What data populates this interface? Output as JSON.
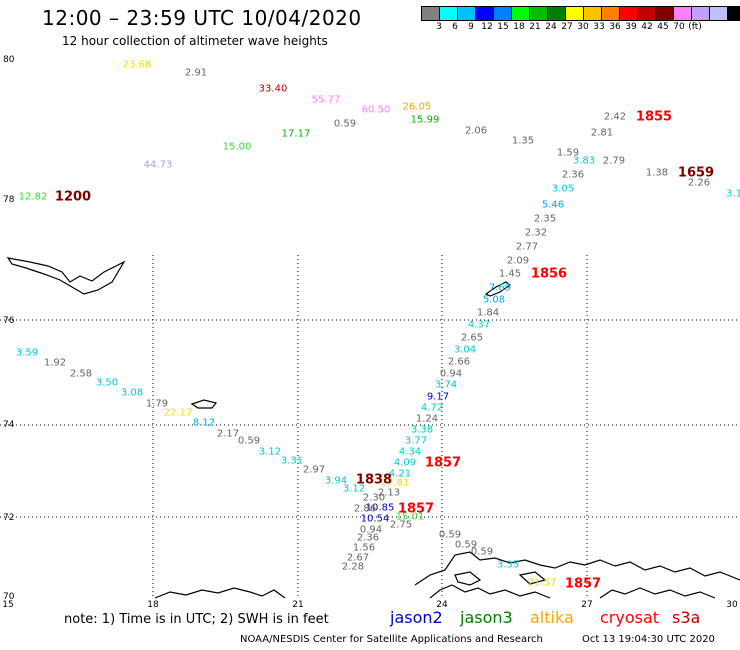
{
  "header": {
    "title": "12:00 – 23:59 UTC 10/04/2020",
    "subtitle": "12 hour collection of altimeter wave heights"
  },
  "colorbar": {
    "colors": [
      "#808080",
      "#00ffff",
      "#00bfff",
      "#0000ff",
      "#0080ff",
      "#00ff00",
      "#00c000",
      "#008000",
      "#ffff00",
      "#ffc000",
      "#ff8000",
      "#ff0000",
      "#c00000",
      "#800000",
      "#ff80ff",
      "#c0a0ff",
      "#c0c0ff",
      "#000000"
    ],
    "labels": [
      "3",
      "6",
      "9",
      "12",
      "15",
      "18",
      "21",
      "24",
      "27",
      "30",
      "33",
      "36",
      "39",
      "42",
      "45",
      "70",
      "(ft)"
    ]
  },
  "axes": {
    "lat_labels": [
      "80",
      "78",
      "76",
      "74",
      "72",
      "70"
    ],
    "lon_labels": [
      "15",
      "18",
      "21",
      "24",
      "27",
      "30"
    ]
  },
  "observations": [
    {
      "v": "23.68",
      "c": "#e6e600"
    },
    {
      "v": "2.91",
      "c": "#666666"
    },
    {
      "v": "33.40",
      "c": "#c00000"
    },
    {
      "v": "55.77",
      "c": "#ff80ff"
    },
    {
      "v": "60.50",
      "c": "#ff80ff"
    },
    {
      "v": "26.05",
      "c": "#e6a800"
    },
    {
      "v": "15.99",
      "c": "#00b000"
    },
    {
      "v": "17.17",
      "c": "#00b000"
    },
    {
      "v": "0.59",
      "c": "#666666"
    },
    {
      "v": "2.06",
      "c": "#666666"
    },
    {
      "v": "15.00",
      "c": "#33dd33"
    },
    {
      "v": "44.73",
      "c": "#a0a0ff"
    },
    {
      "v": "12.82",
      "c": "#33dd33"
    },
    {
      "v": "2.42",
      "c": "#666666"
    },
    {
      "v": "2.81",
      "c": "#666666"
    },
    {
      "v": "1.35",
      "c": "#666666"
    },
    {
      "v": "1.59",
      "c": "#666666"
    },
    {
      "v": "3.83",
      "c": "#00cccc"
    },
    {
      "v": "2.79",
      "c": "#666666"
    },
    {
      "v": "2.36",
      "c": "#666666"
    },
    {
      "v": "1.38",
      "c": "#666666"
    },
    {
      "v": "2.26",
      "c": "#666666"
    },
    {
      "v": "3.05",
      "c": "#00cccc"
    },
    {
      "v": "5.46",
      "c": "#00aaee"
    },
    {
      "v": "2.35",
      "c": "#666666"
    },
    {
      "v": "2.32",
      "c": "#666666"
    },
    {
      "v": "2.77",
      "c": "#666666"
    },
    {
      "v": "2.09",
      "c": "#666666"
    },
    {
      "v": "1.45",
      "c": "#666666"
    },
    {
      "v": "7.69",
      "c": "#00aaee"
    },
    {
      "v": "5.08",
      "c": "#00aaee"
    },
    {
      "v": "1.84",
      "c": "#666666"
    },
    {
      "v": "4.37",
      "c": "#00cccc"
    },
    {
      "v": "2.65",
      "c": "#666666"
    },
    {
      "v": "3.04",
      "c": "#00cccc"
    },
    {
      "v": "2.66",
      "c": "#666666"
    },
    {
      "v": "0.94",
      "c": "#666666"
    },
    {
      "v": "3.74",
      "c": "#00cccc"
    },
    {
      "v": "9.17",
      "c": "#0000cc"
    },
    {
      "v": "4.72",
      "c": "#00cccc"
    },
    {
      "v": "1.24",
      "c": "#666666"
    },
    {
      "v": "3.38",
      "c": "#00cccc"
    },
    {
      "v": "3.77",
      "c": "#00cccc"
    },
    {
      "v": "4.34",
      "c": "#00cccc"
    },
    {
      "v": "4.09",
      "c": "#00cccc"
    },
    {
      "v": "4.21",
      "c": "#00cccc"
    },
    {
      "v": "3.59",
      "c": "#00cccc"
    },
    {
      "v": "1.92",
      "c": "#666666"
    },
    {
      "v": "2.58",
      "c": "#666666"
    },
    {
      "v": "3.50",
      "c": "#00cccc"
    },
    {
      "v": "3.08",
      "c": "#00cccc"
    },
    {
      "v": "1.79",
      "c": "#666666"
    },
    {
      "v": "22.17",
      "c": "#e6e600"
    },
    {
      "v": "8.12",
      "c": "#00aaee"
    },
    {
      "v": "2.17",
      "c": "#666666"
    },
    {
      "v": "0.59",
      "c": "#666666"
    },
    {
      "v": "3.12",
      "c": "#00cccc"
    },
    {
      "v": "3.31",
      "c": "#00cccc"
    },
    {
      "v": "2.97",
      "c": "#666666"
    },
    {
      "v": "3.94",
      "c": "#00cccc"
    },
    {
      "v": "3.12",
      "c": "#00cccc"
    },
    {
      "v": "2.30",
      "c": "#666666"
    },
    {
      "v": "2.13",
      "c": "#666666"
    },
    {
      "v": "27.81",
      "c": "#e6e600"
    },
    {
      "v": "10.85",
      "c": "#0000cc"
    },
    {
      "v": "2.86",
      "c": "#666666"
    },
    {
      "v": "10.54",
      "c": "#0000cc"
    },
    {
      "v": "15.01",
      "c": "#33dd33"
    },
    {
      "v": "0.94",
      "c": "#666666"
    },
    {
      "v": "2.75",
      "c": "#666666"
    },
    {
      "v": "2.36",
      "c": "#666666"
    },
    {
      "v": "1.56",
      "c": "#666666"
    },
    {
      "v": "2.67",
      "c": "#666666"
    },
    {
      "v": "2.28",
      "c": "#666666"
    },
    {
      "v": "0.59",
      "c": "#666666"
    },
    {
      "v": "0.59",
      "c": "#666666"
    },
    {
      "v": "0.59",
      "c": "#666666"
    },
    {
      "v": "3.35",
      "c": "#00cccc"
    },
    {
      "v": "21.57",
      "c": "#e6e600"
    },
    {
      "v": "3.1",
      "c": "#00cccc"
    }
  ],
  "times": [
    {
      "v": "1200",
      "c": "#800000"
    },
    {
      "v": "1855",
      "c": "#ff0000"
    },
    {
      "v": "1659",
      "c": "#800000"
    },
    {
      "v": "1856",
      "c": "#ff0000"
    },
    {
      "v": "1857",
      "c": "#ff0000"
    },
    {
      "v": "1838",
      "c": "#800000"
    },
    {
      "v": "1857",
      "c": "#ff0000"
    },
    {
      "v": "1857",
      "c": "#ff0000"
    }
  ],
  "footer": {
    "note": "note: 1) Time is in UTC; 2) SWH is in feet",
    "satellites": [
      {
        "name": "jason2",
        "c": "#0000cc"
      },
      {
        "name": "jason3",
        "c": "#008000"
      },
      {
        "name": "altika",
        "c": "#ffa500"
      },
      {
        "name": "cryosat",
        "c": "#ff0000"
      },
      {
        "name": "s3a",
        "c": "#c00000"
      }
    ],
    "credit": "NOAA/NESDIS Center for Satellite Applications and Research",
    "timestamp": "Oct 13 19:04:30 UTC 2020"
  }
}
